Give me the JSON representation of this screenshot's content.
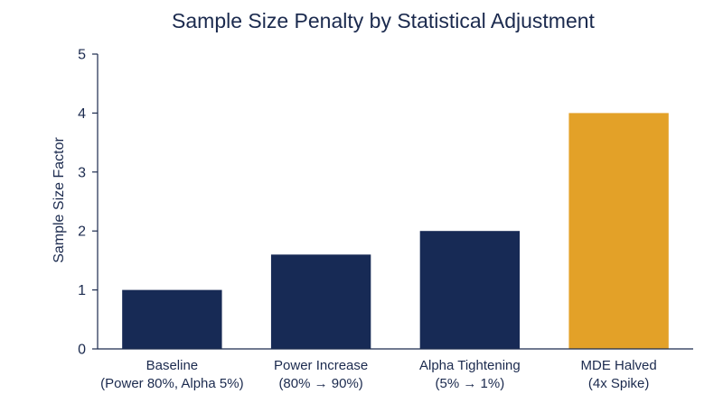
{
  "chart_data": {
    "type": "bar",
    "title": "Sample Size Penalty by Statistical Adjustment",
    "xlabel": "",
    "ylabel": "Sample Size Factor",
    "ylim": [
      0,
      5
    ],
    "yticks": [
      0,
      1,
      2,
      3,
      4,
      5
    ],
    "grid": false,
    "categories": [
      [
        "Baseline",
        "(Power 80%, Alpha 5%)"
      ],
      [
        "Power Increase",
        "(80% → 90%)"
      ],
      [
        "Alpha Tightening",
        "(5% → 1%)"
      ],
      [
        "MDE Halved",
        "(4x Spike)"
      ]
    ],
    "values": [
      1.0,
      1.6,
      2.0,
      4.0
    ],
    "colors": [
      "#172a55",
      "#172a55",
      "#172a55",
      "#e3a128"
    ]
  }
}
